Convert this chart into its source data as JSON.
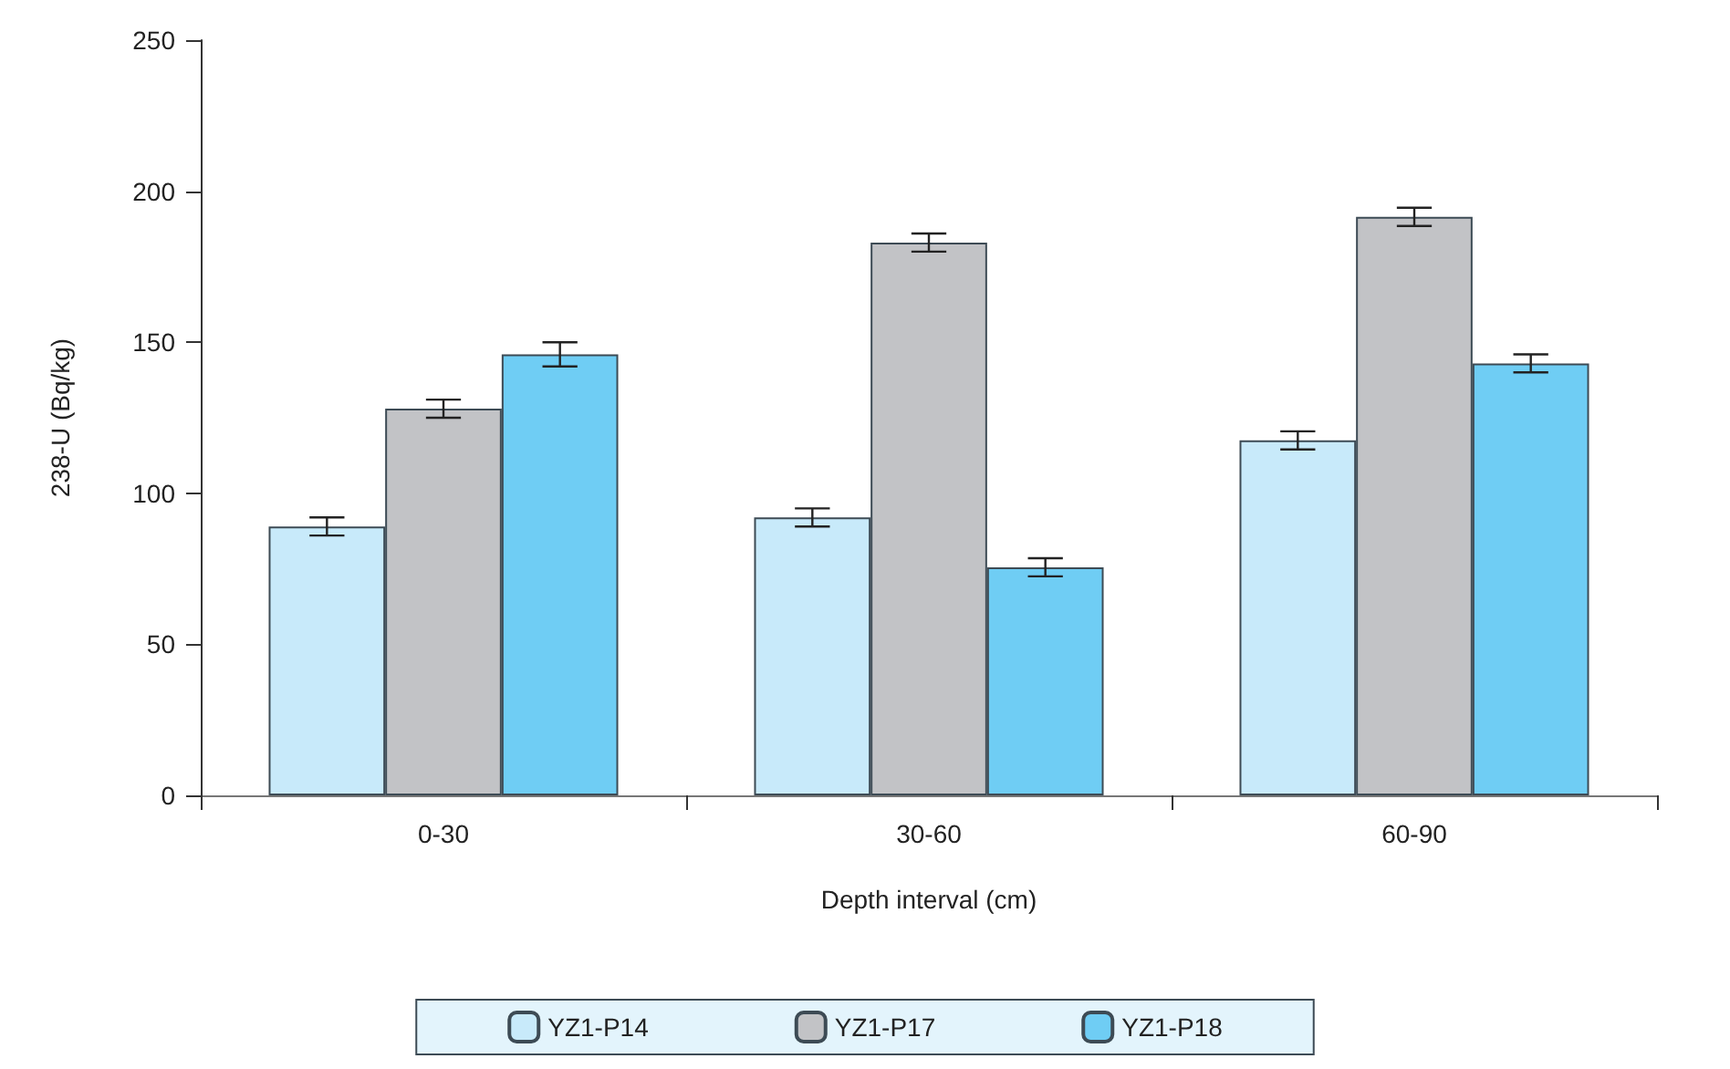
{
  "chart_data": {
    "type": "bar",
    "xlabel": "Depth interval (cm)",
    "ylabel": "238-U (Bq/kg)",
    "categories": [
      "0-30",
      "30-60",
      "60-90"
    ],
    "series": [
      {
        "name": "YZ1-P14",
        "color": "#c8eafa",
        "values": [
          89,
          92,
          117.5
        ],
        "errors": [
          3,
          3,
          3
        ]
      },
      {
        "name": "YZ1-P17",
        "color": "#c2c3c6",
        "values": [
          128,
          183,
          191.5
        ],
        "errors": [
          3,
          3,
          3
        ]
      },
      {
        "name": "YZ1-P18",
        "color": "#6fcdf4",
        "values": [
          146,
          75.5,
          143
        ],
        "errors": [
          4,
          3,
          3
        ]
      }
    ],
    "ylim": [
      0,
      250
    ],
    "yticks": [
      0,
      50,
      100,
      150,
      200,
      250
    ],
    "grid": false,
    "legend": "bottom"
  }
}
